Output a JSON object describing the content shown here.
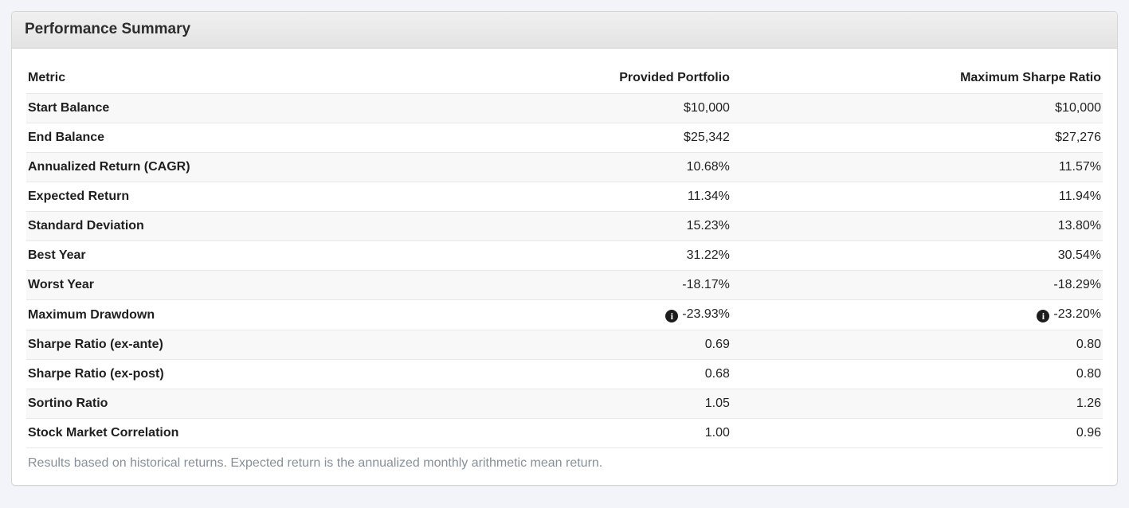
{
  "panel": {
    "title": "Performance Summary"
  },
  "table": {
    "columns": [
      "Metric",
      "Provided Portfolio",
      "Maximum Sharpe Ratio"
    ],
    "rows": [
      {
        "metric": "Start Balance",
        "provided": "$10,000",
        "max_sharpe": "$10,000",
        "info": false
      },
      {
        "metric": "End Balance",
        "provided": "$25,342",
        "max_sharpe": "$27,276",
        "info": false
      },
      {
        "metric": "Annualized Return (CAGR)",
        "provided": "10.68%",
        "max_sharpe": "11.57%",
        "info": false
      },
      {
        "metric": "Expected Return",
        "provided": "11.34%",
        "max_sharpe": "11.94%",
        "info": false
      },
      {
        "metric": "Standard Deviation",
        "provided": "15.23%",
        "max_sharpe": "13.80%",
        "info": false
      },
      {
        "metric": "Best Year",
        "provided": "31.22%",
        "max_sharpe": "30.54%",
        "info": false
      },
      {
        "metric": "Worst Year",
        "provided": "-18.17%",
        "max_sharpe": "-18.29%",
        "info": false
      },
      {
        "metric": "Maximum Drawdown",
        "provided": "-23.93%",
        "max_sharpe": "-23.20%",
        "info": true
      },
      {
        "metric": "Sharpe Ratio (ex-ante)",
        "provided": "0.69",
        "max_sharpe": "0.80",
        "info": false
      },
      {
        "metric": "Sharpe Ratio (ex-post)",
        "provided": "0.68",
        "max_sharpe": "0.80",
        "info": false
      },
      {
        "metric": "Sortino Ratio",
        "provided": "1.05",
        "max_sharpe": "1.26",
        "info": false
      },
      {
        "metric": "Stock Market Correlation",
        "provided": "1.00",
        "max_sharpe": "0.96",
        "info": false
      }
    ],
    "footnote": "Results based on historical returns. Expected return is the annualized monthly arithmetic mean return."
  },
  "icons": {
    "info_glyph": "i"
  },
  "colors": {
    "page_background": "#f3f4f9",
    "panel_heading_top": "#f0f0f0",
    "panel_heading_bottom": "#e3e3e3",
    "panel_border": "#d6d6d6",
    "row_stripe": "#f8f8f8",
    "row_border": "#e8e8e8",
    "text": "#222222",
    "footnote_text": "#87909a",
    "info_icon_background": "#1d1d1d"
  }
}
